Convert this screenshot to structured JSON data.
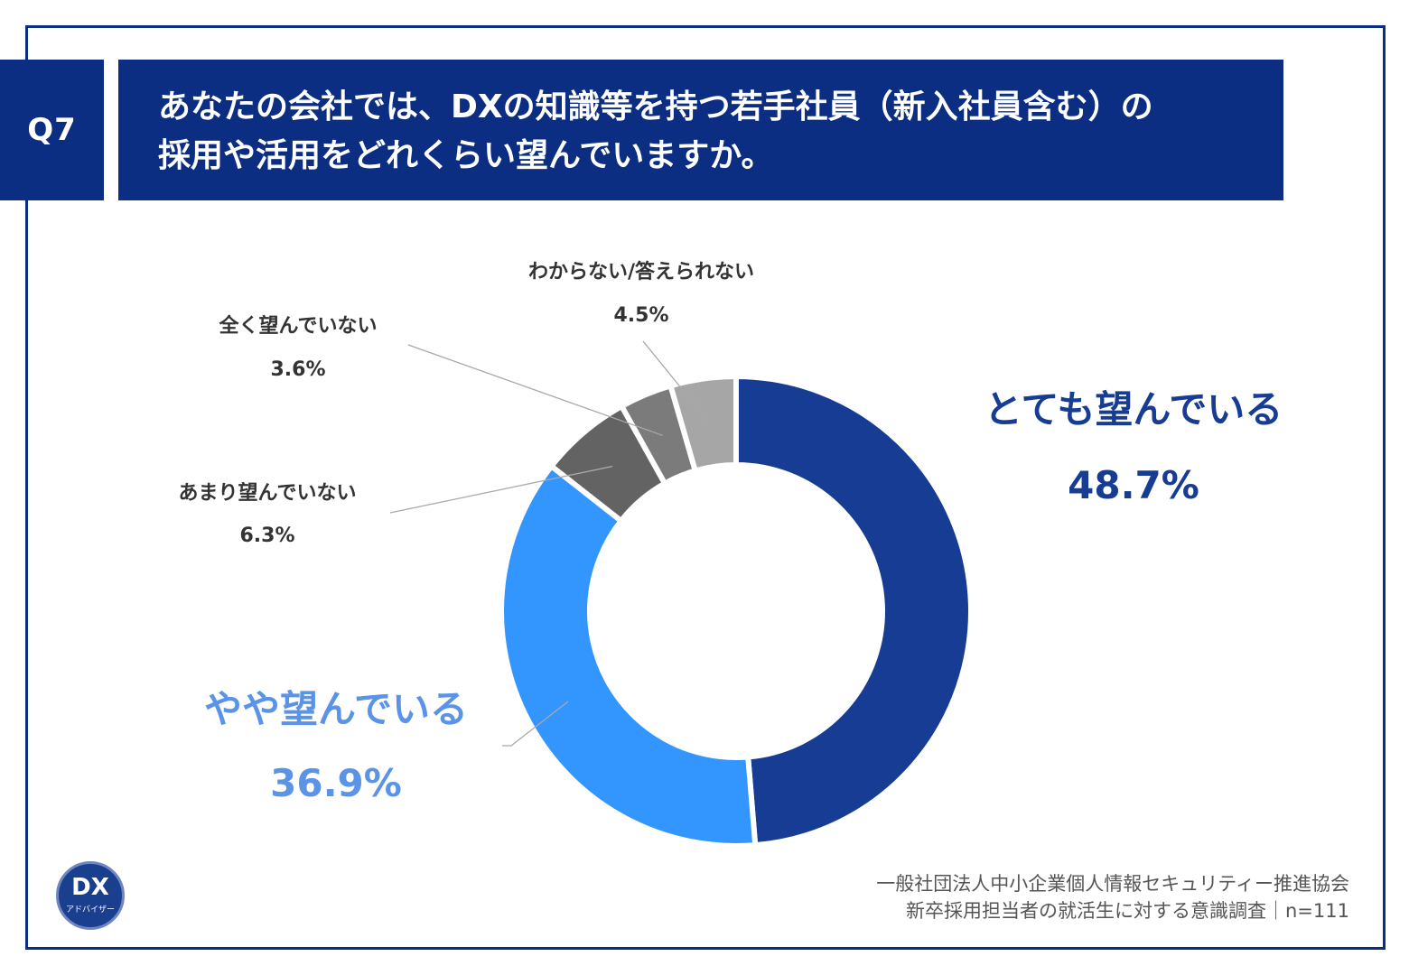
{
  "question": {
    "badge": "Q7",
    "line1": "あなたの会社では、DXの知識等を持つ若手社員（新入社員含む）の",
    "line2": "採用や活用をどれくらい望んでいますか。"
  },
  "chart_data": {
    "type": "pie",
    "donut": true,
    "slices": [
      {
        "label": "とても望んでいる",
        "value": 48.7,
        "value_text": "48.7%",
        "color": "#173c94"
      },
      {
        "label": "やや望んでいる",
        "value": 36.9,
        "value_text": "36.9%",
        "color": "#3396ff"
      },
      {
        "label": "あまり望んでいない",
        "value": 6.3,
        "value_text": "6.3%",
        "color": "#636363"
      },
      {
        "label": "全く望んでいない",
        "value": 3.6,
        "value_text": "3.6%",
        "color": "#7b7b7b"
      },
      {
        "label": "わからない/答えられない",
        "value": 4.5,
        "value_text": "4.5%",
        "color": "#a6a6a6"
      }
    ],
    "label_colors": {
      "large_1": "#173c94",
      "large_2": "#5b93e6",
      "small": "#333333"
    }
  },
  "source": {
    "line1": "一般社団法人中小企業個人情報セキュリティー推進協会",
    "line2": "新卒採用担当者の就活生に対する意識調査｜n=111"
  },
  "logo": {
    "text": "DX",
    "sub": "アドバイザー"
  }
}
